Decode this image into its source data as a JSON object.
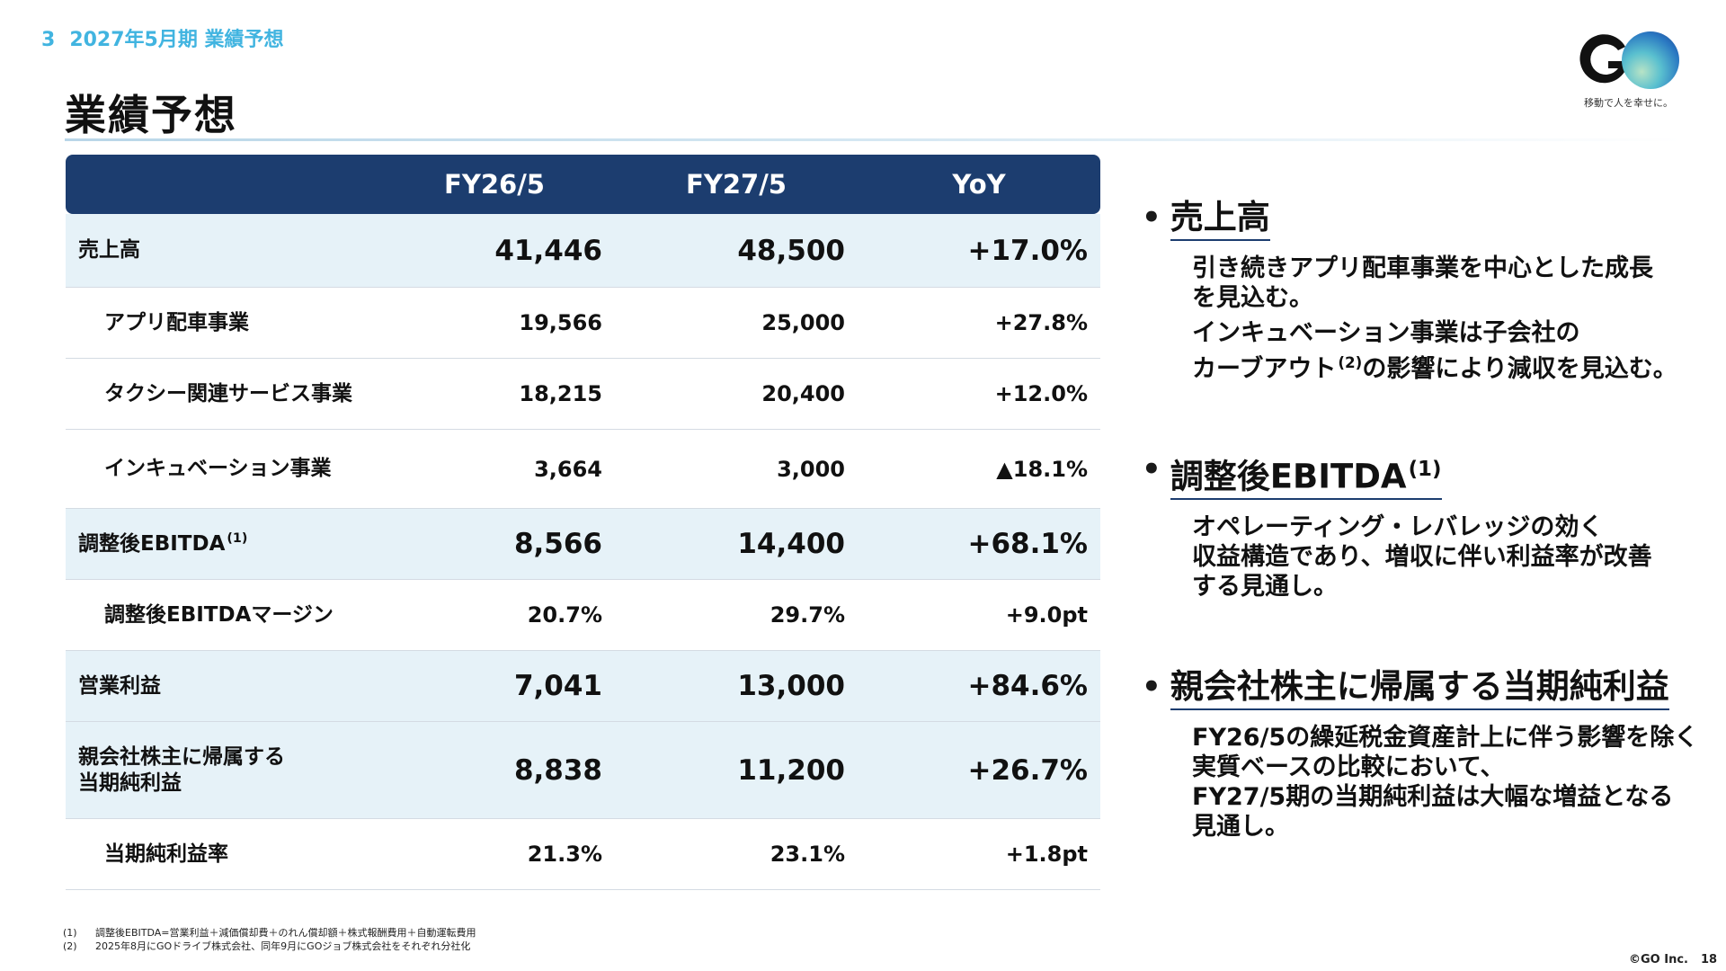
{
  "header": {
    "section_number": "3",
    "section_title": "2027年5月期 業績予想",
    "page_title": "業績予想"
  },
  "logo": {
    "wordmark": "GO",
    "tagline": "移動で人を幸せに。"
  },
  "table": {
    "columns": [
      "",
      "FY26/5",
      "FY27/5",
      "YoY"
    ],
    "rows": [
      {
        "label": "売上高",
        "note": "",
        "fy26": "41,446",
        "fy27": "48,500",
        "yoy": "+17.0%",
        "type": "major"
      },
      {
        "label": "アプリ配車事業",
        "note": "",
        "fy26": "19,566",
        "fy27": "25,000",
        "yoy": "+27.8%",
        "type": "sub"
      },
      {
        "label": "タクシー関連サービス事業",
        "note": "",
        "fy26": "18,215",
        "fy27": "20,400",
        "yoy": "+12.0%",
        "type": "sub"
      },
      {
        "label": "インキュベーション事業",
        "note": "",
        "fy26": "3,664",
        "fy27": "3,000",
        "yoy": "▲18.1%",
        "type": "sub"
      },
      {
        "label": "調整後EBITDA",
        "note": "(1)",
        "fy26": "8,566",
        "fy27": "14,400",
        "yoy": "+68.1%",
        "type": "major"
      },
      {
        "label": "調整後EBITDAマージン",
        "note": "",
        "fy26": "20.7%",
        "fy27": "29.7%",
        "yoy": "+9.0pt",
        "type": "sub"
      },
      {
        "label": "営業利益",
        "note": "",
        "fy26": "7,041",
        "fy27": "13,000",
        "yoy": "+84.6%",
        "type": "major"
      },
      {
        "label_line1": "親会社株主に帰属する",
        "label_line2": "当期純利益",
        "fy26": "8,838",
        "fy27": "11,200",
        "yoy": "+26.7%",
        "type": "major"
      },
      {
        "label": "当期純利益率",
        "note": "",
        "fy26": "21.3%",
        "fy27": "23.1%",
        "yoy": "+1.8pt",
        "type": "sub"
      }
    ]
  },
  "bullets": [
    {
      "title": "売上高",
      "note": "",
      "paragraphs": [
        [
          "引き続きアプリ配車事業を中心とした成長",
          "を見込む。"
        ],
        [
          "インキュベーション事業は子会社の",
          "カーブアウト",
          "(2)",
          "の影響により減収を見込む。"
        ]
      ]
    },
    {
      "title": "調整後EBITDA",
      "note": "(1)",
      "paragraphs": [
        [
          "オペレーティング・レバレッジの効く",
          "収益構造であり、増収に伴い利益率が改善",
          "する見通し。"
        ]
      ]
    },
    {
      "title": "親会社株主に帰属する当期純利益",
      "note": "",
      "paragraphs": [
        [
          "FY26/5の繰延税金資産計上に伴う影響を除く",
          "実質ベースの比較において、",
          "FY27/5期の当期純利益は大幅な増益となる",
          "見通し。"
        ]
      ]
    }
  ],
  "footnotes": [
    {
      "mark": "(1)",
      "text": "調整後EBITDA=営業利益＋減価償却費＋のれん償却額＋株式報酬費用＋自動運転費用"
    },
    {
      "mark": "(2)",
      "text": "2025年8月にGOドライブ株式会社、同年9月にGOジョブ株式会社をそれぞれ分社化"
    }
  ],
  "footer": {
    "copyright": "©GO Inc.",
    "page_number": "18"
  },
  "colors": {
    "accent": "#41b4e0",
    "header_fill": "#1c3d6f",
    "major_row_fill": "#e6f2f8"
  }
}
